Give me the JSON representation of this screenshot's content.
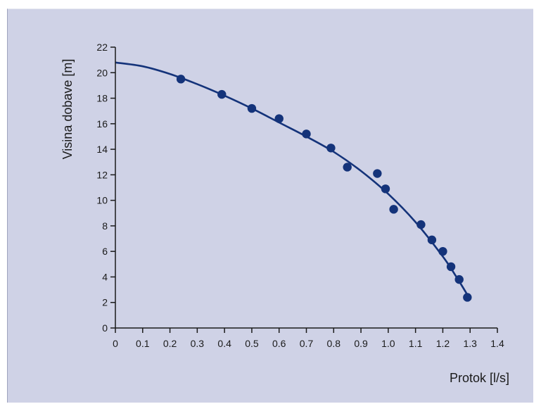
{
  "chart_data": {
    "type": "scatter",
    "title": "",
    "xlabel": "Protok [l/s]",
    "ylabel": "Visina dobave [m]",
    "xlim": [
      0,
      1.4
    ],
    "ylim": [
      0,
      22
    ],
    "x_ticks": [
      "0",
      "0.1",
      "0.2",
      "0.3",
      "0.4",
      "0.5",
      "0.6",
      "0.7",
      "0.8",
      "0.9",
      "1.0",
      "1.1",
      "1.2",
      "1.3",
      "1.4"
    ],
    "y_ticks": [
      "0",
      "2",
      "4",
      "6",
      "8",
      "10",
      "12",
      "14",
      "16",
      "18",
      "20",
      "22"
    ],
    "grid": false,
    "series": [
      {
        "kind": "points",
        "color": "#14337a",
        "x": [
          0.24,
          0.39,
          0.5,
          0.6,
          0.7,
          0.79,
          0.85,
          0.96,
          0.99,
          1.02,
          1.12,
          1.16,
          1.2,
          1.23,
          1.26,
          1.29
        ],
        "y": [
          19.5,
          18.3,
          17.2,
          16.4,
          15.2,
          14.1,
          12.6,
          12.1,
          10.9,
          9.3,
          8.1,
          6.9,
          6.0,
          4.8,
          3.8,
          2.4
        ]
      },
      {
        "kind": "fit-curve",
        "color": "#14337a",
        "x": [
          0.0,
          0.1,
          0.2,
          0.3,
          0.4,
          0.5,
          0.6,
          0.7,
          0.8,
          0.9,
          1.0,
          1.1,
          1.2,
          1.25,
          1.29
        ],
        "y": [
          20.8,
          20.5,
          19.9,
          19.1,
          18.2,
          17.2,
          16.1,
          15.0,
          13.8,
          12.3,
          10.5,
          8.3,
          5.6,
          4.0,
          2.6
        ]
      }
    ]
  }
}
